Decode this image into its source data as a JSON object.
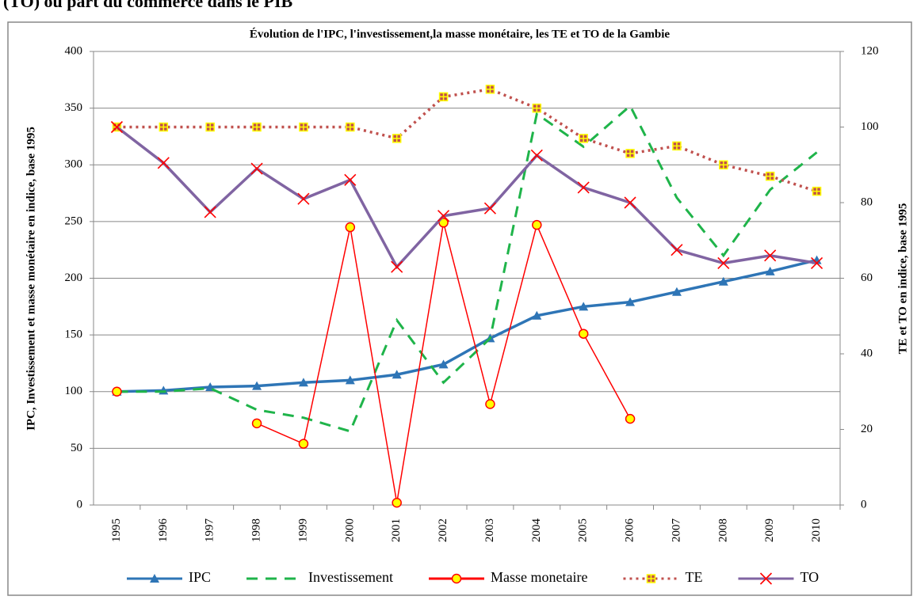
{
  "header": "(TO) ou part du commerce dans le PIB",
  "chart_data": {
    "type": "line",
    "title": "Évolution de l'IPC, l'investissement,la masse monétaire, les TE et TO de la Gambie",
    "y_label": "IPC, Investissement et masse monétaire en indice, base 1995",
    "y2_label": "TE et TO en indice, base 1995",
    "categories": [
      "1995",
      "1996",
      "1997",
      "1998",
      "1999",
      "2000",
      "2001",
      "2002",
      "2003",
      "2004",
      "2005",
      "2006",
      "2007",
      "2008",
      "2009",
      "2010"
    ],
    "ylim": [
      0,
      400
    ],
    "yticks": [
      0,
      50,
      100,
      150,
      200,
      250,
      300,
      350,
      400
    ],
    "y2lim": [
      0,
      120
    ],
    "y2ticks": [
      0,
      20,
      40,
      60,
      80,
      100,
      120
    ],
    "grid": true,
    "legend": "bottom",
    "series": [
      {
        "name": "IPC",
        "color": "#2e75b6",
        "dash": "solid",
        "marker": "triangle",
        "values": [
          100,
          101,
          104,
          105,
          108,
          110,
          115,
          124,
          147,
          167,
          175,
          179,
          188,
          197,
          206,
          216
        ]
      },
      {
        "name": "Investissement",
        "color": "#1fb44a",
        "dash": "dashed",
        "marker": "none",
        "values": [
          100,
          100,
          103,
          84,
          77,
          65,
          163,
          108,
          147,
          345,
          316,
          352,
          271,
          220,
          278,
          311
        ]
      },
      {
        "name": "Masse monetaire",
        "color": "#ff0000",
        "dash": "solid",
        "marker": "circle",
        "values": [
          100,
          null,
          null,
          72,
          54,
          245,
          2,
          249,
          89,
          247,
          151,
          76,
          null,
          null,
          null,
          null
        ]
      },
      {
        "name": "TE",
        "color": "#c0504d",
        "dash": "dotted",
        "marker": "square",
        "axis": "y2",
        "values": [
          100,
          100,
          100,
          100,
          100,
          100,
          97,
          108,
          110,
          105,
          97,
          93,
          95,
          90,
          87,
          83
        ]
      },
      {
        "name": "TO",
        "color": "#8064a2",
        "dash": "solid",
        "marker": "x",
        "axis": "y2",
        "values": [
          100,
          90.5,
          77.5,
          89,
          81,
          86,
          63,
          76.5,
          78.5,
          92.5,
          84,
          80,
          67.5,
          64,
          66,
          64
        ]
      }
    ]
  }
}
